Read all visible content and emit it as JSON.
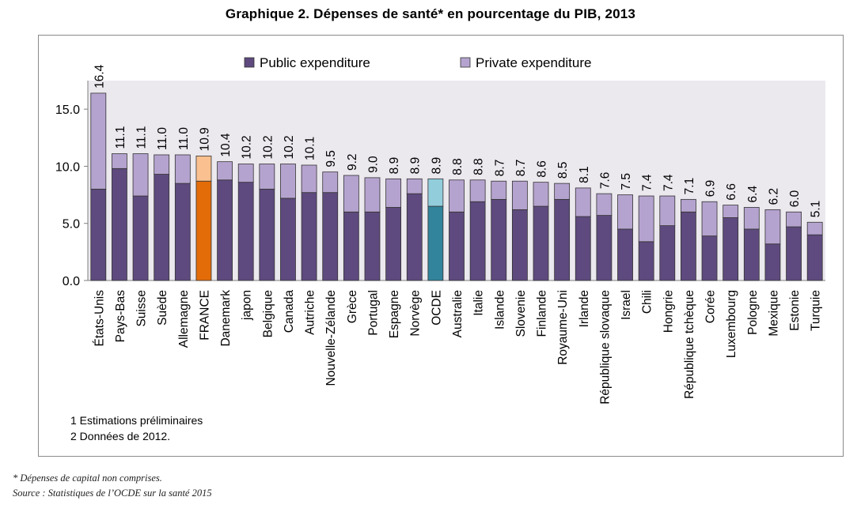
{
  "title": "Graphique 2. Dépenses de santé* en pourcentage du PIB, 2013",
  "notes": [
    "1 Estimations préliminaires",
    "2 Données de 2012."
  ],
  "footer": {
    "note": "* Dépenses de capital non comprises.",
    "source": "Source : Statistiques de l’OCDE sur la santé 2015"
  },
  "colors": {
    "public": "#5e4a7e",
    "private": "#b5a3cf",
    "france_public": "#e36c09",
    "france_private": "#fac08f",
    "oecd_public": "#31849b",
    "oecd_private": "#92cddc",
    "plot_bg": "#ebe8ee",
    "bar_stroke": "#333333"
  },
  "chart_data": {
    "type": "bar",
    "stacked": true,
    "categories": [
      "États-Unis",
      "Pays-Bas",
      "Suisse",
      "Suède",
      "Allemagne",
      "FRANCE",
      "Danemark",
      "japon",
      "Belgique",
      "Canada",
      "Autriche",
      "Nouvelle-Zélande",
      "Grèce",
      "Portugal",
      "Espagne",
      "Norvège",
      "OCDE",
      "Australie",
      "Italie",
      "Islande",
      "Slovenie",
      "Finlande",
      "Royaume-Uni",
      "Irlande",
      "République slovaque",
      "Israel",
      "Chili",
      "Hongrie",
      "République tchèque",
      "Corée",
      "Luxembourg",
      "Pologne",
      "Mexique",
      "Estonie",
      "Turquie"
    ],
    "series": [
      {
        "name": "Public expenditure",
        "values": [
          8.0,
          9.8,
          7.4,
          9.3,
          8.5,
          8.7,
          8.8,
          8.6,
          8.0,
          7.2,
          7.7,
          7.7,
          6.0,
          6.0,
          6.4,
          7.6,
          6.5,
          6.0,
          6.9,
          7.1,
          6.2,
          6.5,
          7.1,
          5.6,
          5.7,
          4.5,
          3.4,
          4.8,
          6.0,
          3.9,
          5.5,
          4.5,
          3.2,
          4.7,
          4.0
        ]
      },
      {
        "name": "Private expenditure",
        "values": [
          8.4,
          1.3,
          3.7,
          1.7,
          2.5,
          2.2,
          1.6,
          1.6,
          2.2,
          3.0,
          2.4,
          1.8,
          3.2,
          3.0,
          2.5,
          1.3,
          2.4,
          2.8,
          1.9,
          1.6,
          2.5,
          2.1,
          1.4,
          2.5,
          1.9,
          3.0,
          4.0,
          2.6,
          1.1,
          3.0,
          1.1,
          1.9,
          3.0,
          1.3,
          1.1
        ]
      }
    ],
    "totals": [
      "16.4",
      "11.1",
      "11.1",
      "11.0",
      "11.0",
      "10.9",
      "10.4",
      "10.2",
      "10.2",
      "10.2",
      "10.1",
      "9.5",
      "9.2",
      "9.0",
      "8.9",
      "8.9",
      "8.9",
      "8.8",
      "8.8",
      "8.7",
      "8.7",
      "8.6",
      "8.5",
      "8.1",
      "7.6",
      "7.5",
      "7.4",
      "7.4",
      "7.1",
      "6.9",
      "6.6",
      "6.4",
      "6.2",
      "6.0",
      "5.1"
    ],
    "highlights": {
      "FRANCE": "france",
      "OCDE": "oecd"
    },
    "yticks": [
      "0.0",
      "5.0",
      "10.0",
      "15.0"
    ],
    "ylim": [
      0,
      17.5
    ],
    "legend_position": "top"
  }
}
